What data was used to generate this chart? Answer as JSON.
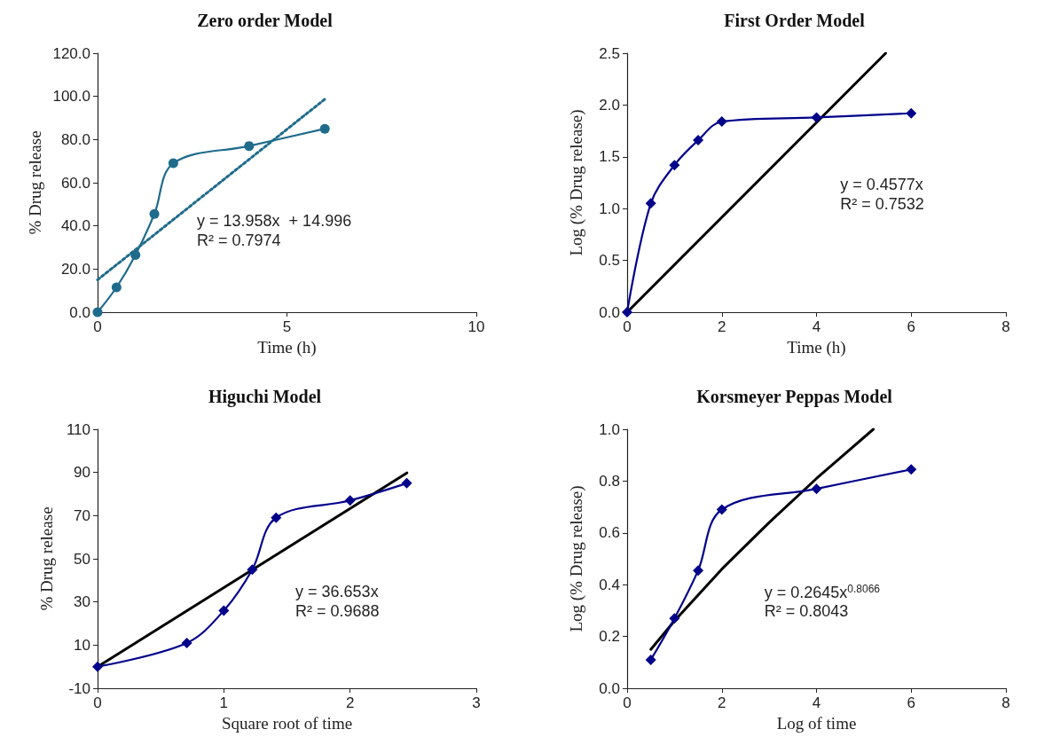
{
  "chart_data": [
    {
      "type": "line",
      "title": "Zero order Model",
      "xlabel": "Time (h)",
      "ylabel": "% Drug release",
      "marker": "circle",
      "grid": false,
      "xlim": [
        0,
        10
      ],
      "xticks": [
        0,
        5,
        10
      ],
      "ylim": [
        0,
        120
      ],
      "yticks": [
        {
          "value": 0,
          "label": "0.0"
        },
        {
          "value": 20,
          "label": "20.0"
        },
        {
          "value": 40,
          "label": "40.0"
        },
        {
          "value": 60,
          "label": "60.0"
        },
        {
          "value": 80,
          "label": "80.0"
        },
        {
          "value": 100,
          "label": "100.0"
        },
        {
          "value": 120,
          "label": "120.0"
        }
      ],
      "series": [
        {
          "color": "#1f6b8c",
          "x": [
            0,
            0.5,
            1,
            1.5,
            2,
            4,
            6
          ],
          "values": [
            0,
            11.5,
            26.5,
            45.5,
            69,
            77,
            85
          ],
          "line_style": "solid"
        },
        {
          "color": "#1f6b8c",
          "x": [
            0,
            6
          ],
          "values": [
            15,
            98.7
          ],
          "line_style": "dotted",
          "marker": "none"
        }
      ],
      "annotations": [
        "y = 13.958x  + 14.996",
        "R² = 0.7974"
      ]
    },
    {
      "type": "line",
      "title": "First Order Model",
      "xlabel": "Time (h)",
      "ylabel": "Log (% Drug release)",
      "marker": "diamond",
      "grid": false,
      "xlim": [
        0,
        8
      ],
      "xticks": [
        0,
        2,
        4,
        6,
        8
      ],
      "ylim": [
        0,
        2.5
      ],
      "yticks": [
        {
          "value": 0,
          "label": "0.0"
        },
        0.5,
        {
          "value": 1,
          "label": "1.0"
        },
        1.5,
        {
          "value": 2,
          "label": "2.0"
        },
        2.5
      ],
      "series": [
        {
          "color": "#00008b",
          "x": [
            0,
            0.5,
            1,
            1.5,
            2,
            4,
            6
          ],
          "values": [
            0,
            1.05,
            1.42,
            1.66,
            1.84,
            1.88,
            1.92
          ],
          "line_style": "solid"
        },
        {
          "color": "#000000",
          "x": [
            0,
            5.46
          ],
          "values": [
            0,
            2.5
          ],
          "line_style": "solid",
          "marker": "none"
        }
      ],
      "annotations": [
        "y = 0.4577x",
        "R² = 0.7532"
      ]
    },
    {
      "type": "line",
      "title": "Higuchi Model",
      "xlabel": "Square root of time",
      "ylabel": "% Drug release",
      "marker": "diamond",
      "grid": false,
      "xlim": [
        0,
        3
      ],
      "xticks": [
        0,
        1,
        2,
        3
      ],
      "ylim": [
        -10,
        110
      ],
      "yticks": [
        -10,
        10,
        30,
        50,
        70,
        90,
        110
      ],
      "series": [
        {
          "color": "#00008b",
          "x": [
            0,
            0.707,
            1,
            1.225,
            1.414,
            2,
            2.449
          ],
          "values": [
            0,
            11,
            26,
            45,
            69,
            77,
            85
          ],
          "line_style": "solid"
        },
        {
          "color": "#000000",
          "x": [
            0,
            2.45
          ],
          "values": [
            0,
            89.8
          ],
          "line_style": "solid",
          "marker": "none"
        }
      ],
      "annotations": [
        "y = 36.653x",
        "R² = 0.9688"
      ]
    },
    {
      "type": "line",
      "title": "Korsmeyer Peppas Model",
      "xlabel": "Log of time",
      "ylabel": "Log (% Drug release)",
      "marker": "diamond",
      "grid": false,
      "xlim": [
        0,
        8
      ],
      "xticks": [
        0,
        2,
        4,
        6,
        8
      ],
      "ylim": [
        0,
        1
      ],
      "yticks": [
        {
          "value": 0,
          "label": "0.0"
        },
        0.2,
        0.4,
        0.6,
        0.8,
        {
          "value": 1,
          "label": "1.0"
        }
      ],
      "series": [
        {
          "color": "#00008b",
          "x": [
            0.5,
            1,
            1.5,
            2,
            4,
            6
          ],
          "values": [
            0.11,
            0.27,
            0.455,
            0.69,
            0.77,
            0.845
          ],
          "line_style": "solid"
        },
        {
          "color": "#000000",
          "x": [
            0.5,
            1,
            2,
            3,
            4,
            5.2
          ],
          "values": [
            0.15,
            0.26,
            0.46,
            0.64,
            0.81,
            1.0
          ],
          "line_style": "solid",
          "marker": "none"
        }
      ],
      "annotations": [
        "y = 0.2645x$^{0.8066}$",
        "R² = 0.8043"
      ]
    }
  ]
}
